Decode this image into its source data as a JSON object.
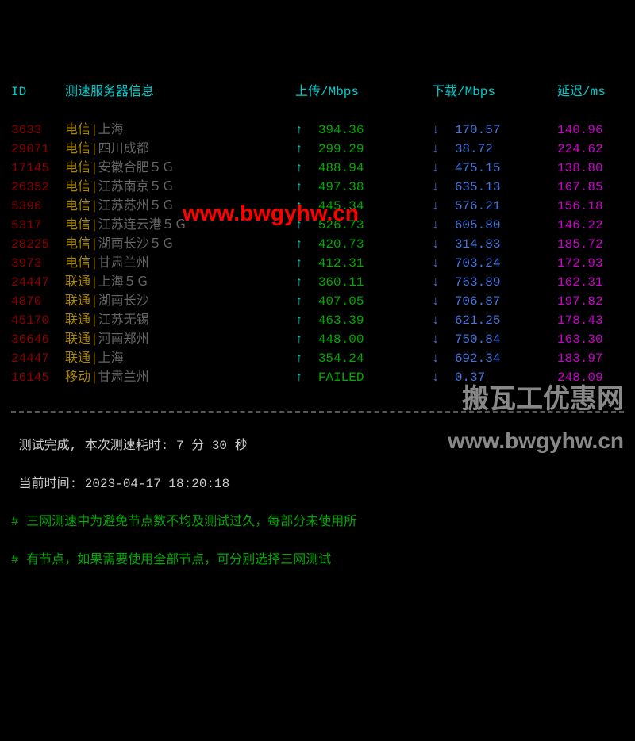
{
  "colors": {
    "background": "#000000",
    "header": "#00cccc",
    "id": "#8b0000",
    "carrier": "#aa8800",
    "location": "#666666",
    "arrow_up": "#00cccc",
    "arrow_down": "#4477dd",
    "upload_value": "#00aa00",
    "download_value": "#4477dd",
    "latency_value": "#cc00cc",
    "footer_text": "#cccccc",
    "comment": "#00aa00",
    "watermark_red": "#ff0000",
    "watermark_gray": "#888888"
  },
  "typography": {
    "font_family": "Consolas, Courier New, monospace",
    "font_size": 16,
    "line_height": 1.5
  },
  "header": {
    "id": "ID",
    "server": "测速服务器信息",
    "upload": "上传/Mbps",
    "download": "下载/Mbps",
    "latency": "延迟/ms"
  },
  "rows": [
    {
      "id": "3633",
      "carrier": "电信",
      "loc": "上海",
      "upload": "394.36",
      "download": "170.57",
      "latency": "140.96"
    },
    {
      "id": "29071",
      "carrier": "电信",
      "loc": "四川成都",
      "upload": "299.29",
      "download": "38.72",
      "latency": "224.62"
    },
    {
      "id": "17145",
      "carrier": "电信",
      "loc": "安徽合肥５Ｇ",
      "upload": "488.94",
      "download": "475.15",
      "latency": "138.80"
    },
    {
      "id": "26352",
      "carrier": "电信",
      "loc": "江苏南京５Ｇ",
      "upload": "497.38",
      "download": "635.13",
      "latency": "167.85"
    },
    {
      "id": "5396",
      "carrier": "电信",
      "loc": "江苏苏州５Ｇ",
      "upload": "445.34",
      "download": "576.21",
      "latency": "156.18"
    },
    {
      "id": "5317",
      "carrier": "电信",
      "loc": "江苏连云港５Ｇ",
      "upload": "526.73",
      "download": "605.80",
      "latency": "146.22"
    },
    {
      "id": "28225",
      "carrier": "电信",
      "loc": "湖南长沙５Ｇ",
      "upload": "420.73",
      "download": "314.83",
      "latency": "185.72"
    },
    {
      "id": "3973",
      "carrier": "电信",
      "loc": "甘肃兰州",
      "upload": "412.31",
      "download": "703.24",
      "latency": "172.93"
    },
    {
      "id": "24447",
      "carrier": "联通",
      "loc": "上海５Ｇ",
      "upload": "360.11",
      "download": "763.89",
      "latency": "162.31"
    },
    {
      "id": "4870",
      "carrier": "联通",
      "loc": "湖南长沙",
      "upload": "407.05",
      "download": "706.87",
      "latency": "197.82"
    },
    {
      "id": "45170",
      "carrier": "联通",
      "loc": "江苏无锡",
      "upload": "463.39",
      "download": "621.25",
      "latency": "178.43"
    },
    {
      "id": "36646",
      "carrier": "联通",
      "loc": "河南郑州",
      "upload": "448.00",
      "download": "750.84",
      "latency": "163.30"
    },
    {
      "id": "24447",
      "carrier": "联通",
      "loc": "上海",
      "upload": "354.24",
      "download": "692.34",
      "latency": "183.97"
    },
    {
      "id": "16145",
      "carrier": "移动",
      "loc": "甘肃兰州",
      "upload": "FAILED",
      "download": "0.37",
      "latency": "248.09"
    }
  ],
  "symbols": {
    "arrow_up": "↑",
    "arrow_down": "↓",
    "pipe": "|"
  },
  "footer": {
    "line1": " 测试完成, 本次测速耗时: 7 分 30 秒",
    "line2": " 当前时间: 2023-04-17 18:20:18",
    "line3": "# 三网测速中为避免节点数不均及测试过久，每部分未使用所",
    "line4": "# 有节点，如果需要使用全部节点，可分别选择三网测试"
  },
  "watermarks": {
    "center": "www.bwgyhw.cn",
    "bottom_right_cn": "搬瓦工优惠网",
    "bottom_right_url": "www.bwgyhw.cn"
  }
}
